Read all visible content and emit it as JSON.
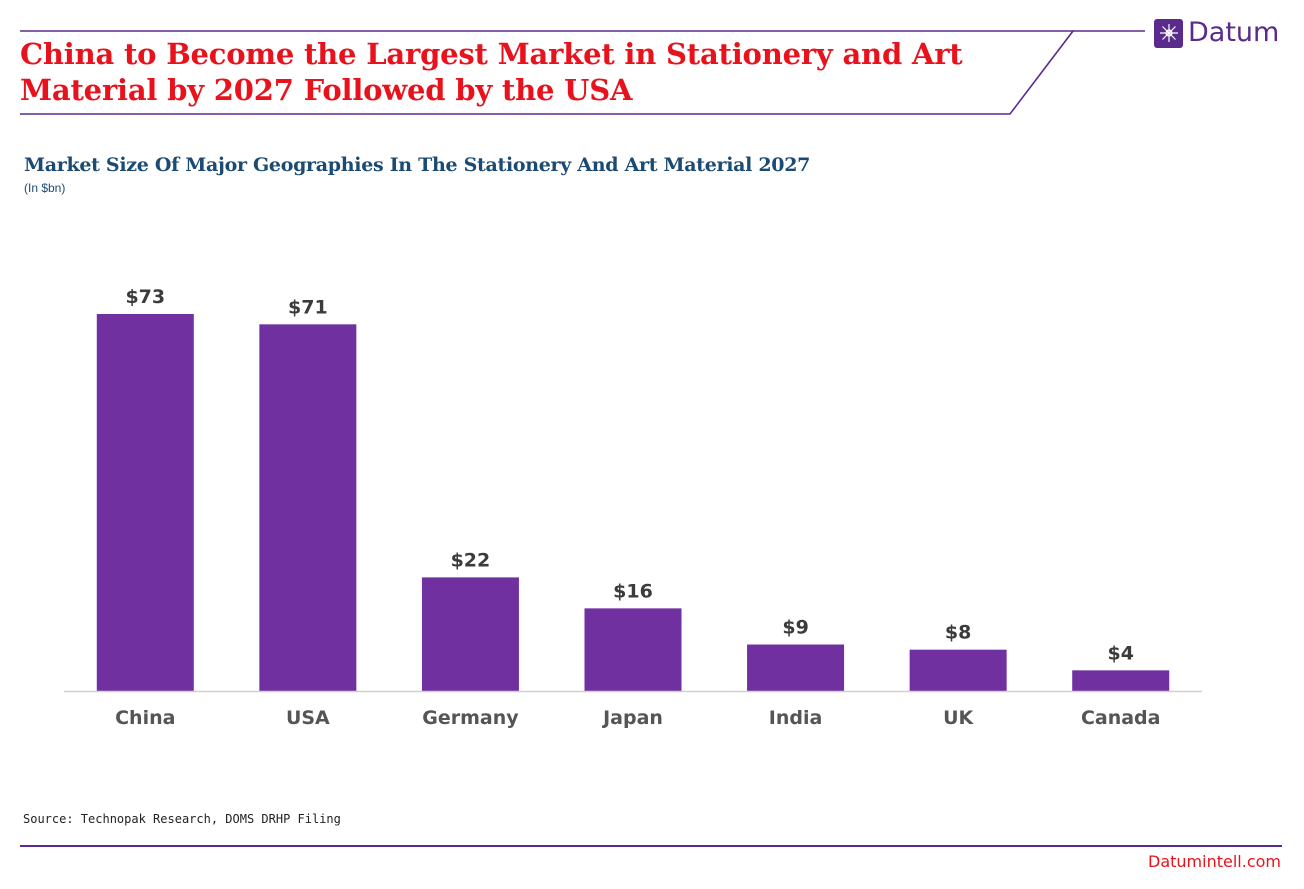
{
  "headline": "China to Become the Largest Market in Stationery and Art Material by 2027 Followed by the USA",
  "brand": {
    "name": "Datum",
    "icon": "datum-logo-icon",
    "color": "#5a2b8c"
  },
  "chart_data": {
    "type": "bar",
    "title": "Market Size Of Major Geographies In The Stationery And Art Material 2027",
    "subtitle": "(In $bn)",
    "categories": [
      "China",
      "USA",
      "Germany",
      "Japan",
      "India",
      "UK",
      "Canada"
    ],
    "values": [
      73,
      71,
      22,
      16,
      9,
      8,
      4
    ],
    "data_labels": [
      "$73",
      "$71",
      "$22",
      "$16",
      "$9",
      "$8",
      "$4"
    ],
    "ylim": [
      0,
      73
    ],
    "grid": false,
    "bar_color": "#7030a0"
  },
  "footer": {
    "source": "Source: Technopak Research, DOMS DRHP Filing",
    "website": "Datumintell.com"
  },
  "colors": {
    "headline": "#e8121d",
    "chart_title": "#1b4a73",
    "accent": "#5a2b8c"
  }
}
